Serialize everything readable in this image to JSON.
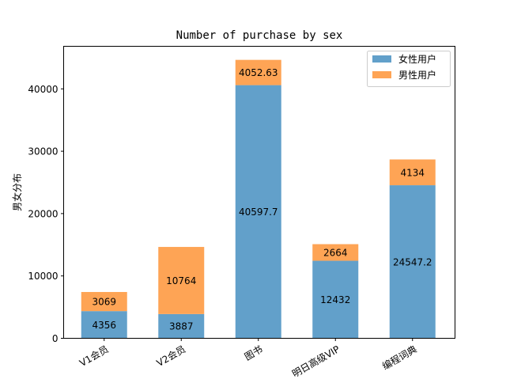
{
  "chart_data": {
    "type": "bar",
    "stacked": true,
    "title": "Number of purchase by sex",
    "xlabel": "",
    "ylabel": "男女分布",
    "categories": [
      "V1会员",
      "V2会员",
      "图书",
      "明日高级VIP",
      "编程词典"
    ],
    "series": [
      {
        "name": "女性用户",
        "color": "#62a0ca",
        "values": [
          4356,
          3887,
          40597.7,
          12432,
          24547.2
        ],
        "labels": [
          "4356",
          "3887",
          "40597.7",
          "12432",
          "24547.2"
        ]
      },
      {
        "name": "男性用户",
        "color": "#fea455",
        "values": [
          3069,
          10764,
          4052.63,
          2664,
          4134
        ],
        "labels": [
          "3069",
          "10764",
          "4052.63",
          "2664",
          "4134"
        ]
      }
    ],
    "ylim": [
      0,
      47000
    ],
    "yticks": [
      0,
      10000,
      20000,
      30000,
      40000
    ],
    "ytick_labels": [
      "0",
      "10000",
      "20000",
      "30000",
      "40000"
    ],
    "legend_position": "top-right",
    "grid": false
  }
}
